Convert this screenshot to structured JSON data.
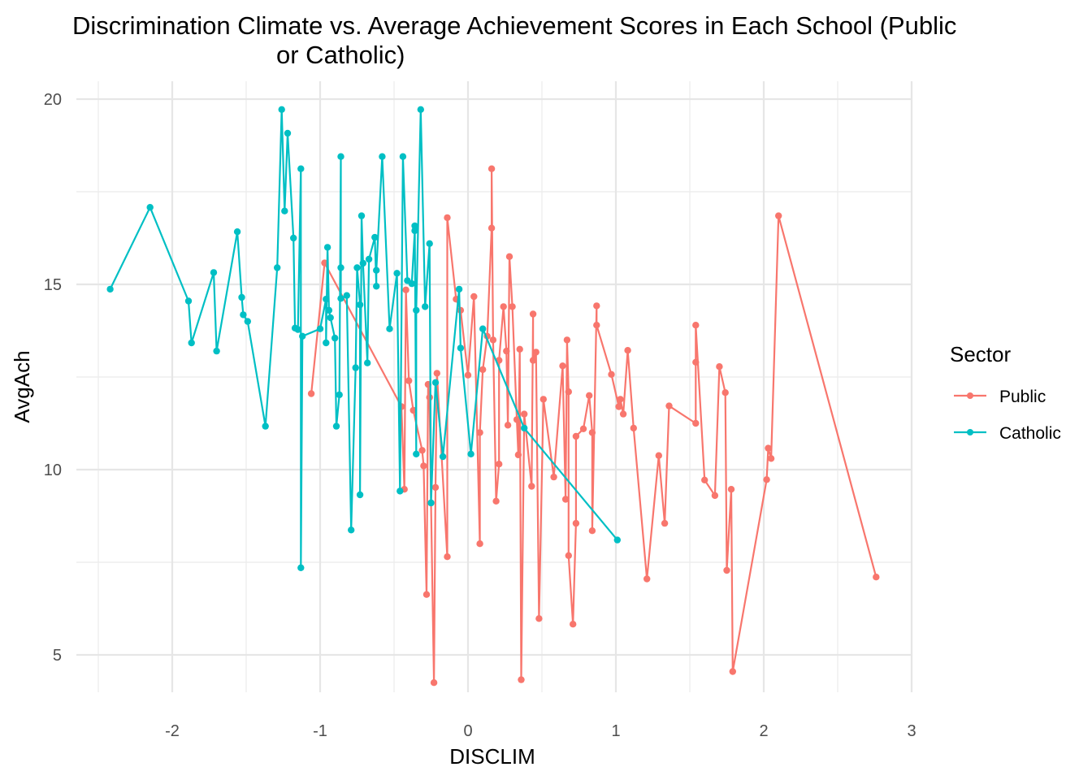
{
  "chart_data": {
    "type": "line",
    "title_line1": "Discrimination Climate vs. Average Achievement Scores in Each School (Public",
    "title_line2": "or Catholic)",
    "xlabel": "DISCLIM",
    "ylabel": "AvgAch",
    "xlim": [
      -2.5,
      3.0
    ],
    "ylim": [
      3.8,
      20.4
    ],
    "x_ticks": [
      -2,
      -1,
      0,
      1,
      2,
      3
    ],
    "x_tick_labels": [
      "-2",
      "-1",
      "0",
      "1",
      "2",
      "3"
    ],
    "y_ticks": [
      5,
      10,
      15,
      20
    ],
    "y_tick_labels": [
      "5",
      "10",
      "15",
      "20"
    ],
    "grid": true,
    "legend_title": "Sector",
    "legend_position": "right",
    "series": [
      {
        "name": "Public",
        "color": "#F8766D",
        "points": [
          [
            -1.06,
            12.05
          ],
          [
            -0.97,
            15.58
          ],
          [
            -0.45,
            11.7
          ],
          [
            -0.43,
            9.47
          ],
          [
            -0.42,
            14.85
          ],
          [
            -0.4,
            12.4
          ],
          [
            -0.37,
            11.6
          ],
          [
            -0.31,
            10.52
          ],
          [
            -0.3,
            10.1
          ],
          [
            -0.28,
            6.63
          ],
          [
            -0.27,
            12.3
          ],
          [
            -0.26,
            11.95
          ],
          [
            -0.25,
            9.1
          ],
          [
            -0.23,
            4.25
          ],
          [
            -0.22,
            9.52
          ],
          [
            -0.21,
            12.6
          ],
          [
            -0.14,
            7.65
          ],
          [
            -0.14,
            16.8
          ],
          [
            -0.08,
            14.6
          ],
          [
            -0.05,
            14.3
          ],
          [
            0.0,
            12.55
          ],
          [
            0.04,
            14.67
          ],
          [
            0.08,
            8.0
          ],
          [
            0.08,
            11.0
          ],
          [
            0.1,
            12.7
          ],
          [
            0.13,
            13.6
          ],
          [
            0.16,
            16.52
          ],
          [
            0.16,
            18.12
          ],
          [
            0.17,
            13.5
          ],
          [
            0.19,
            9.15
          ],
          [
            0.21,
            10.15
          ],
          [
            0.21,
            12.95
          ],
          [
            0.24,
            14.4
          ],
          [
            0.26,
            13.2
          ],
          [
            0.27,
            11.2
          ],
          [
            0.28,
            15.75
          ],
          [
            0.3,
            14.4
          ],
          [
            0.33,
            11.35
          ],
          [
            0.34,
            10.4
          ],
          [
            0.35,
            13.25
          ],
          [
            0.36,
            4.33
          ],
          [
            0.38,
            11.5
          ],
          [
            0.43,
            9.55
          ],
          [
            0.44,
            14.2
          ],
          [
            0.44,
            12.95
          ],
          [
            0.46,
            13.17
          ],
          [
            0.48,
            5.98
          ],
          [
            0.51,
            11.9
          ],
          [
            0.58,
            9.8
          ],
          [
            0.64,
            12.8
          ],
          [
            0.66,
            9.2
          ],
          [
            0.67,
            13.5
          ],
          [
            0.68,
            12.1
          ],
          [
            0.68,
            7.68
          ],
          [
            0.71,
            5.83
          ],
          [
            0.73,
            8.55
          ],
          [
            0.73,
            10.9
          ],
          [
            0.78,
            11.1
          ],
          [
            0.82,
            12.0
          ],
          [
            0.84,
            11.0
          ],
          [
            0.84,
            8.35
          ],
          [
            0.87,
            14.42
          ],
          [
            0.87,
            13.9
          ],
          [
            0.97,
            12.57
          ],
          [
            1.02,
            11.7
          ],
          [
            1.03,
            11.9
          ],
          [
            1.05,
            11.5
          ],
          [
            1.08,
            13.22
          ],
          [
            1.12,
            11.12
          ],
          [
            1.21,
            7.05
          ],
          [
            1.29,
            10.38
          ],
          [
            1.33,
            8.55
          ],
          [
            1.36,
            11.72
          ],
          [
            1.54,
            11.25
          ],
          [
            1.54,
            12.9
          ],
          [
            1.54,
            13.9
          ],
          [
            1.6,
            9.72
          ],
          [
            1.67,
            9.3
          ],
          [
            1.7,
            12.78
          ],
          [
            1.74,
            12.08
          ],
          [
            1.75,
            7.28
          ],
          [
            1.78,
            9.47
          ],
          [
            1.79,
            4.55
          ],
          [
            2.02,
            9.73
          ],
          [
            2.03,
            10.58
          ],
          [
            2.05,
            10.3
          ],
          [
            2.1,
            16.85
          ],
          [
            2.76,
            7.1
          ]
        ]
      },
      {
        "name": "Catholic",
        "color": "#00BFC4",
        "points": [
          [
            -2.42,
            14.87
          ],
          [
            -2.15,
            17.08
          ],
          [
            -1.89,
            14.55
          ],
          [
            -1.87,
            13.42
          ],
          [
            -1.72,
            15.32
          ],
          [
            -1.7,
            13.2
          ],
          [
            -1.56,
            16.42
          ],
          [
            -1.53,
            14.65
          ],
          [
            -1.52,
            14.18
          ],
          [
            -1.49,
            14.0
          ],
          [
            -1.37,
            11.17
          ],
          [
            -1.29,
            15.45
          ],
          [
            -1.26,
            19.72
          ],
          [
            -1.24,
            16.98
          ],
          [
            -1.22,
            19.08
          ],
          [
            -1.18,
            16.25
          ],
          [
            -1.17,
            13.82
          ],
          [
            -1.15,
            13.78
          ],
          [
            -1.13,
            18.12
          ],
          [
            -1.13,
            7.35
          ],
          [
            -1.12,
            13.6
          ],
          [
            -1.0,
            13.8
          ],
          [
            -0.96,
            14.6
          ],
          [
            -0.96,
            13.42
          ],
          [
            -0.95,
            16.0
          ],
          [
            -0.94,
            14.3
          ],
          [
            -0.93,
            14.1
          ],
          [
            -0.9,
            13.55
          ],
          [
            -0.89,
            11.17
          ],
          [
            -0.87,
            12.02
          ],
          [
            -0.86,
            18.45
          ],
          [
            -0.86,
            15.45
          ],
          [
            -0.86,
            14.62
          ],
          [
            -0.82,
            14.7
          ],
          [
            -0.79,
            8.37
          ],
          [
            -0.76,
            12.75
          ],
          [
            -0.75,
            15.45
          ],
          [
            -0.73,
            14.45
          ],
          [
            -0.72,
            16.85
          ],
          [
            -0.73,
            9.32
          ],
          [
            -0.71,
            15.57
          ],
          [
            -0.68,
            12.88
          ],
          [
            -0.67,
            15.68
          ],
          [
            -0.63,
            16.27
          ],
          [
            -0.62,
            14.95
          ],
          [
            -0.62,
            15.38
          ],
          [
            -0.58,
            18.45
          ],
          [
            -0.53,
            13.8
          ],
          [
            -0.48,
            15.3
          ],
          [
            -0.46,
            9.42
          ],
          [
            -0.44,
            18.45
          ],
          [
            -0.41,
            15.1
          ],
          [
            -0.38,
            15.02
          ],
          [
            -0.36,
            16.45
          ],
          [
            -0.36,
            16.58
          ],
          [
            -0.35,
            10.42
          ],
          [
            -0.35,
            14.3
          ],
          [
            -0.32,
            19.72
          ],
          [
            -0.29,
            14.4
          ],
          [
            -0.26,
            16.1
          ],
          [
            -0.25,
            9.1
          ],
          [
            -0.22,
            12.35
          ],
          [
            -0.17,
            10.35
          ],
          [
            -0.06,
            14.87
          ],
          [
            -0.05,
            13.28
          ],
          [
            0.02,
            10.42
          ],
          [
            0.1,
            13.8
          ],
          [
            0.38,
            11.12
          ],
          [
            1.01,
            8.1
          ]
        ]
      }
    ]
  }
}
